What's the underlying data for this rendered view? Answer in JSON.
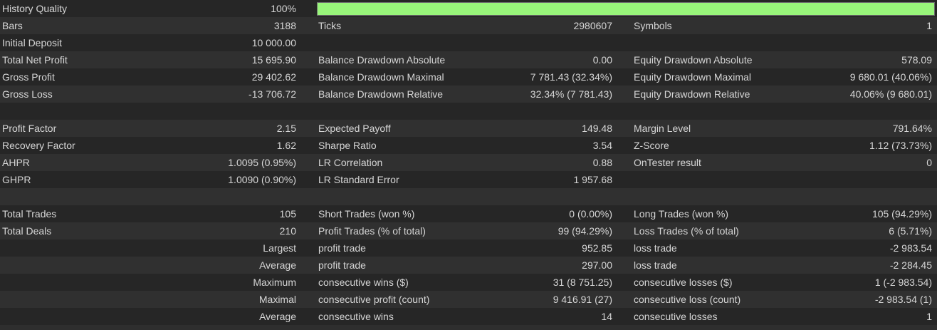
{
  "history_quality": {
    "label": "History Quality",
    "value": "100%",
    "percent": 100,
    "bar_color": "#98f57a"
  },
  "rows": [
    {
      "c1l": "Bars",
      "c1v": "3188",
      "c2l": "Ticks",
      "c2v": "2980607",
      "c3l": "Symbols",
      "c3v": "1"
    },
    {
      "c1l": "Initial Deposit",
      "c1v": "10 000.00",
      "c2l": "",
      "c2v": "",
      "c3l": "",
      "c3v": ""
    },
    {
      "c1l": "Total Net Profit",
      "c1v": "15 695.90",
      "c2l": "Balance Drawdown Absolute",
      "c2v": "0.00",
      "c3l": "Equity Drawdown Absolute",
      "c3v": "578.09"
    },
    {
      "c1l": "Gross Profit",
      "c1v": "29 402.62",
      "c2l": "Balance Drawdown Maximal",
      "c2v": "7 781.43 (32.34%)",
      "c3l": "Equity Drawdown Maximal",
      "c3v": "9 680.01 (40.06%)"
    },
    {
      "c1l": "Gross Loss",
      "c1v": "-13 706.72",
      "c2l": "Balance Drawdown Relative",
      "c2v": "32.34% (7 781.43)",
      "c3l": "Equity Drawdown Relative",
      "c3v": "40.06% (9 680.01)"
    },
    {
      "c1l": "",
      "c1v": "",
      "c2l": "",
      "c2v": "",
      "c3l": "",
      "c3v": ""
    },
    {
      "c1l": "Profit Factor",
      "c1v": "2.15",
      "c2l": "Expected Payoff",
      "c2v": "149.48",
      "c3l": "Margin Level",
      "c3v": "791.64%"
    },
    {
      "c1l": "Recovery Factor",
      "c1v": "1.62",
      "c2l": "Sharpe Ratio",
      "c2v": "3.54",
      "c3l": "Z-Score",
      "c3v": "1.12 (73.73%)"
    },
    {
      "c1l": "AHPR",
      "c1v": "1.0095 (0.95%)",
      "c2l": "LR Correlation",
      "c2v": "0.88",
      "c3l": "OnTester result",
      "c3v": "0"
    },
    {
      "c1l": "GHPR",
      "c1v": "1.0090 (0.90%)",
      "c2l": "LR Standard Error",
      "c2v": "1 957.68",
      "c3l": "",
      "c3v": ""
    },
    {
      "c1l": "",
      "c1v": "",
      "c2l": "",
      "c2v": "",
      "c3l": "",
      "c3v": ""
    },
    {
      "c1l": "Total Trades",
      "c1v": "105",
      "c2l": "Short Trades (won %)",
      "c2v": "0 (0.00%)",
      "c3l": "Long Trades (won %)",
      "c3v": "105 (94.29%)"
    },
    {
      "c1l": "Total Deals",
      "c1v": "210",
      "c2l": "Profit Trades (% of total)",
      "c2v": "99 (94.29%)",
      "c3l": "Loss Trades (% of total)",
      "c3v": "6 (5.71%)"
    },
    {
      "c1l": "",
      "c1v": "Largest",
      "c2l": "profit trade",
      "c2v": "952.85",
      "c3l": "loss trade",
      "c3v": "-2 983.54"
    },
    {
      "c1l": "",
      "c1v": "Average",
      "c2l": "profit trade",
      "c2v": "297.00",
      "c3l": "loss trade",
      "c3v": "-2 284.45"
    },
    {
      "c1l": "",
      "c1v": "Maximum",
      "c2l": "consecutive wins ($)",
      "c2v": "31 (8 751.25)",
      "c3l": "consecutive losses ($)",
      "c3v": "1 (-2 983.54)"
    },
    {
      "c1l": "",
      "c1v": "Maximal",
      "c2l": "consecutive profit (count)",
      "c2v": "9 416.91 (27)",
      "c3l": "consecutive loss (count)",
      "c3v": "-2 983.54 (1)"
    },
    {
      "c1l": "",
      "c1v": "Average",
      "c2l": "consecutive wins",
      "c2v": "14",
      "c3l": "consecutive losses",
      "c3v": "1"
    }
  ]
}
